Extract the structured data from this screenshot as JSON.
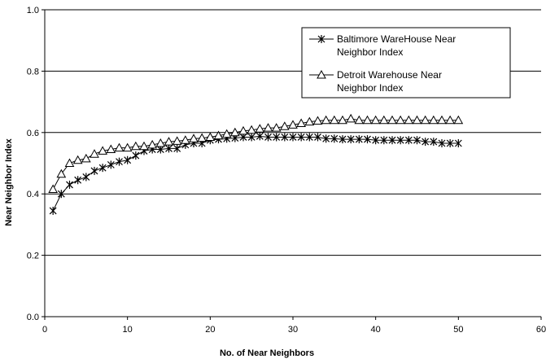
{
  "chart_data": {
    "type": "line",
    "xlabel": "No. of Near Neighbors",
    "ylabel": "Near Neighbor Index",
    "xlim": [
      0,
      60
    ],
    "ylim": [
      0.0,
      1.0
    ],
    "x_ticks": [
      0,
      10,
      20,
      30,
      40,
      50,
      60
    ],
    "y_ticks": [
      "0.0",
      "0.2",
      "0.4",
      "0.6",
      "0.8",
      "1.0"
    ],
    "y_tick_values": [
      0.0,
      0.2,
      0.4,
      0.6,
      0.8,
      1.0
    ],
    "grid": "horizontal",
    "legend_position": "top-right",
    "x": [
      1,
      2,
      3,
      4,
      5,
      6,
      7,
      8,
      9,
      10,
      11,
      12,
      13,
      14,
      15,
      16,
      17,
      18,
      19,
      20,
      21,
      22,
      23,
      24,
      25,
      26,
      27,
      28,
      29,
      30,
      31,
      32,
      33,
      34,
      35,
      36,
      37,
      38,
      39,
      40,
      41,
      42,
      43,
      44,
      45,
      46,
      47,
      48,
      49,
      50
    ],
    "series": [
      {
        "name": "Baltimore WareHouse Near Neighbor Index",
        "marker": "asterisk",
        "color": "#000000",
        "values": [
          0.345,
          0.4,
          0.43,
          0.445,
          0.455,
          0.475,
          0.485,
          0.495,
          0.505,
          0.51,
          0.525,
          0.54,
          0.545,
          0.545,
          0.548,
          0.548,
          0.56,
          0.565,
          0.565,
          0.575,
          0.578,
          0.58,
          0.582,
          0.585,
          0.585,
          0.588,
          0.585,
          0.585,
          0.585,
          0.585,
          0.585,
          0.585,
          0.585,
          0.58,
          0.58,
          0.578,
          0.578,
          0.578,
          0.578,
          0.575,
          0.575,
          0.575,
          0.575,
          0.575,
          0.575,
          0.57,
          0.57,
          0.565,
          0.565,
          0.565
        ]
      },
      {
        "name": "Detroit Warehouse Near Neighbor Index",
        "marker": "triangle",
        "color": "#000000",
        "values": [
          0.415,
          0.465,
          0.5,
          0.51,
          0.515,
          0.53,
          0.54,
          0.545,
          0.55,
          0.55,
          0.555,
          0.555,
          0.56,
          0.565,
          0.57,
          0.572,
          0.575,
          0.58,
          0.582,
          0.585,
          0.59,
          0.595,
          0.6,
          0.605,
          0.608,
          0.612,
          0.615,
          0.615,
          0.62,
          0.625,
          0.63,
          0.635,
          0.638,
          0.64,
          0.64,
          0.64,
          0.645,
          0.64,
          0.64,
          0.64,
          0.64,
          0.64,
          0.64,
          0.64,
          0.64,
          0.64,
          0.64,
          0.64,
          0.64,
          0.64
        ]
      }
    ]
  }
}
